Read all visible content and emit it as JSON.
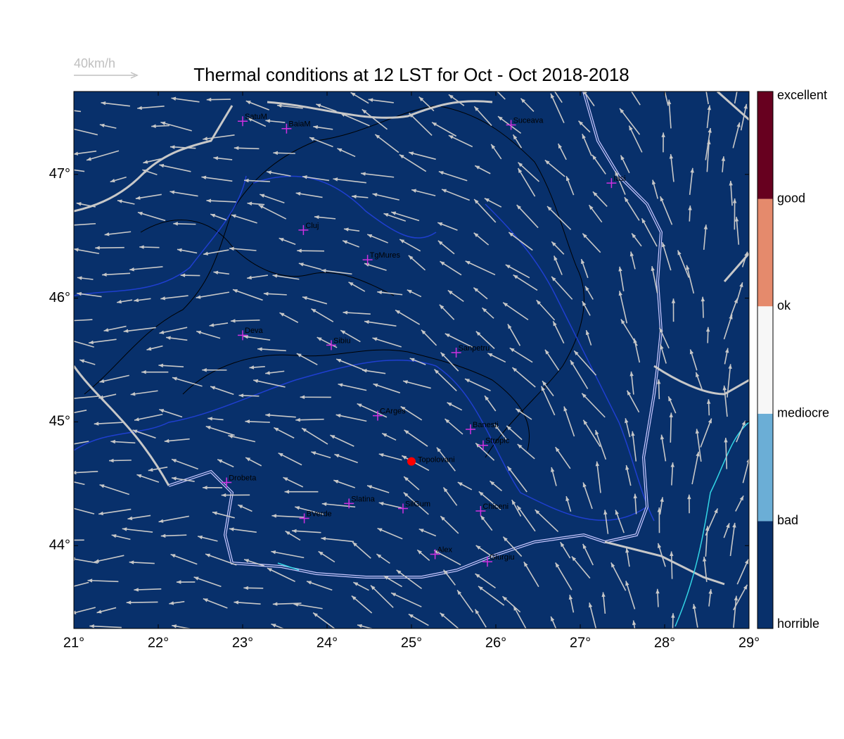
{
  "map": {
    "title": "Thermal conditions at 12 LST for Oct - Oct  2018-2018",
    "scale_label": "40km/h",
    "xlim": [
      21,
      29
    ],
    "ylim": [
      43.33,
      47.67
    ],
    "xticks": [
      {
        "value": 21,
        "label": "21°"
      },
      {
        "value": 22,
        "label": "22°"
      },
      {
        "value": 23,
        "label": "23°"
      },
      {
        "value": 24,
        "label": "24°"
      },
      {
        "value": 25,
        "label": "25°"
      },
      {
        "value": 26,
        "label": "26°"
      },
      {
        "value": 27,
        "label": "27°"
      },
      {
        "value": 28,
        "label": "28°"
      },
      {
        "value": 29,
        "label": "29°"
      }
    ],
    "yticks": [
      {
        "value": 44,
        "label": "44°"
      },
      {
        "value": 45,
        "label": "45°"
      },
      {
        "value": 46,
        "label": "46°"
      },
      {
        "value": 47,
        "label": "47°"
      }
    ],
    "colorbar": {
      "labels": [
        "horrible",
        "bad",
        "mediocre",
        "ok",
        "good",
        "excellent"
      ],
      "colors": [
        "#08306b",
        "#6baed6",
        "#f7f7f7",
        "#e58a6c",
        "#67001f"
      ]
    },
    "stations": [
      {
        "name": "SatuM",
        "lon": 23.0,
        "lat": 47.43
      },
      {
        "name": "BaiaM",
        "lon": 23.52,
        "lat": 47.37
      },
      {
        "name": "Suceava",
        "lon": 26.18,
        "lat": 47.4
      },
      {
        "name": "Iasi",
        "lon": 27.37,
        "lat": 46.93
      },
      {
        "name": "Cluj",
        "lon": 23.72,
        "lat": 46.55
      },
      {
        "name": "TgMures",
        "lon": 24.48,
        "lat": 46.31
      },
      {
        "name": "Deva",
        "lon": 23.0,
        "lat": 45.7
      },
      {
        "name": "Sibiu",
        "lon": 24.05,
        "lat": 45.62
      },
      {
        "name": "Sanpetru",
        "lon": 25.53,
        "lat": 45.56
      },
      {
        "name": "CArges",
        "lon": 24.6,
        "lat": 45.05
      },
      {
        "name": "Banesti",
        "lon": 25.7,
        "lat": 44.94
      },
      {
        "name": "Stropic",
        "lon": 25.85,
        "lat": 44.81
      },
      {
        "name": "Drobeta",
        "lon": 22.81,
        "lat": 44.51
      },
      {
        "name": "Slatina",
        "lon": 24.26,
        "lat": 44.34
      },
      {
        "name": "SilGum",
        "lon": 24.9,
        "lat": 44.3
      },
      {
        "name": "BVerde",
        "lon": 23.73,
        "lat": 44.22
      },
      {
        "name": "Chiceni",
        "lon": 25.82,
        "lat": 44.28
      },
      {
        "name": "Alex",
        "lon": 25.28,
        "lat": 43.93
      },
      {
        "name": "Giurgiu",
        "lon": 25.9,
        "lat": 43.87
      }
    ],
    "site": {
      "name": "Topolovani",
      "lon": 25.0,
      "lat": 44.68,
      "color": "#ff0000"
    }
  }
}
